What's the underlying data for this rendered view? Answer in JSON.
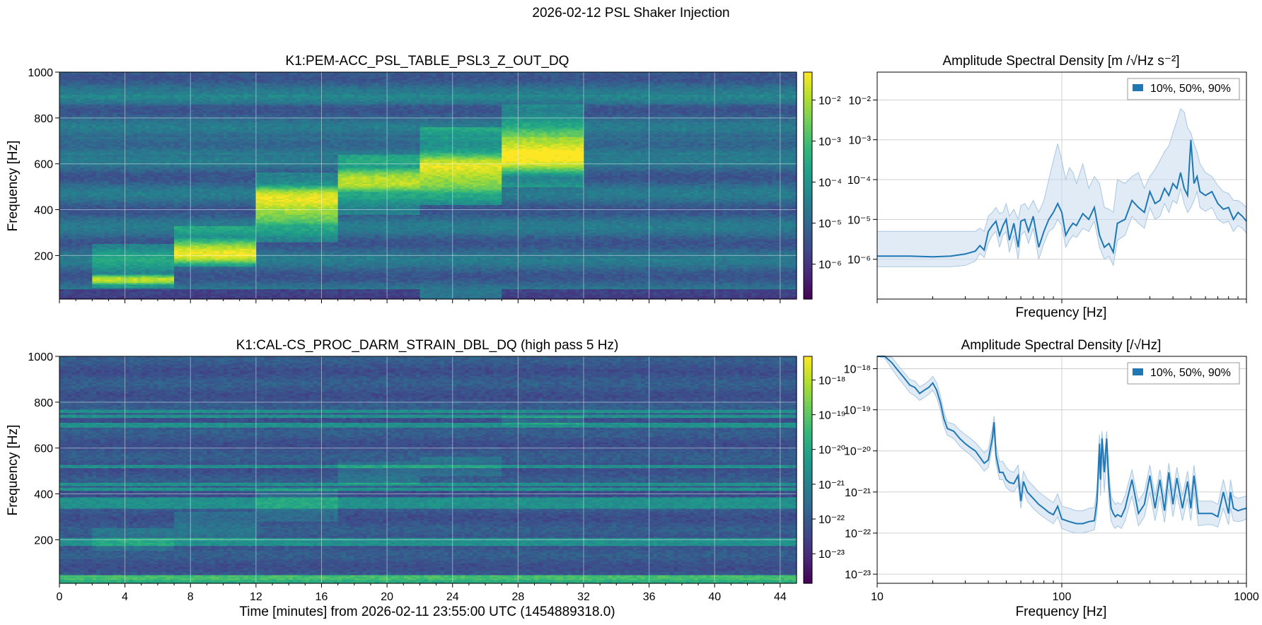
{
  "figure": {
    "suptitle": "2026-02-12 PSL Shaker Injection"
  },
  "colors": {
    "line": "#1f77b4",
    "band": "#c6dbef",
    "grid": "#d0d0d0"
  },
  "chart_data": [
    {
      "type": "heatmap",
      "title": "K1:PEM-ACC_PSL_TABLE_PSL3_Z_OUT_DQ",
      "ylabel": "Frequency [Hz]",
      "xlabel": "",
      "xlim": [
        0,
        45
      ],
      "ylim": [
        10,
        1000
      ],
      "xticks": [
        0,
        4,
        8,
        12,
        16,
        20,
        24,
        28,
        32,
        36,
        40,
        44
      ],
      "xtick_labels": [],
      "yticks": [
        200,
        400,
        600,
        800,
        1000
      ],
      "ytick_labels": [
        "200",
        "400",
        "600",
        "800",
        "1000"
      ],
      "grid": true,
      "colormap": "viridis",
      "colorbar": {
        "scale": "log",
        "ticks": [
          0.01,
          0.001,
          0.0001,
          1e-05,
          1e-06
        ],
        "tick_labels": [
          "10^-2",
          "10^-3",
          "10^-4",
          "10^-5",
          "10^-6"
        ]
      },
      "injections": [
        {
          "t_start": 2,
          "t_end": 7,
          "f_center": 95,
          "f_width": 25,
          "band_lo": 60,
          "band_hi": 250
        },
        {
          "t_start": 7,
          "t_end": 12,
          "f_center": 220,
          "f_width": 60,
          "band_lo": 150,
          "band_hi": 330
        },
        {
          "t_start": 12,
          "t_end": 17,
          "f_center": 420,
          "f_width": 90,
          "band_lo": 260,
          "band_hi": 560
        },
        {
          "t_start": 17,
          "t_end": 22,
          "f_center": 530,
          "f_width": 55,
          "band_lo": 380,
          "band_hi": 640
        },
        {
          "t_start": 22,
          "t_end": 27,
          "f_center": 560,
          "f_width": 90,
          "band_lo": 420,
          "band_hi": 760
        },
        {
          "t_start": 27,
          "t_end": 32,
          "f_center": 650,
          "f_width": 110,
          "band_lo": 500,
          "band_hi": 860
        }
      ]
    },
    {
      "type": "line",
      "title": "Amplitude Spectral Density [m /√Hz s⁻²]",
      "xlabel": "Frequency [Hz]",
      "ylabel": "",
      "xscale": "log",
      "yscale": "log",
      "xlim": [
        10,
        1000
      ],
      "ylim": [
        1e-07,
        0.05
      ],
      "xticks": [
        10,
        100,
        1000
      ],
      "xtick_labels": [],
      "yticks": [
        0.01,
        0.001,
        0.0001,
        1e-05,
        1e-06
      ],
      "ytick_labels": [
        "10^-2",
        "10^-3",
        "10^-4",
        "10^-5",
        "10^-6"
      ],
      "grid": true,
      "legend": {
        "label": "10%, 50%, 90%",
        "position": "top-right"
      },
      "series": [
        {
          "x": [
            10,
            15,
            20,
            25,
            30,
            34,
            36,
            38,
            40,
            42,
            44,
            46,
            48,
            50,
            52,
            55,
            58,
            60,
            63,
            66,
            70,
            75,
            80,
            85,
            90,
            95,
            100,
            105,
            110,
            115,
            120,
            130,
            140,
            150,
            160,
            170,
            180,
            190,
            200,
            220,
            240,
            260,
            280,
            300,
            320,
            340,
            360,
            380,
            400,
            420,
            440,
            460,
            480,
            500,
            520,
            540,
            560,
            600,
            650,
            700,
            750,
            800,
            850,
            900,
            950,
            1000
          ],
          "median": [
            1.2e-06,
            1.2e-06,
            1.15e-06,
            1.2e-06,
            1.35e-06,
            1.6e-06,
            2.2e-06,
            1.7e-06,
            5e-06,
            7e-06,
            9e-06,
            4e-06,
            7e-06,
            1e-05,
            3e-06,
            8e-06,
            2e-06,
            9e-06,
            1e-05,
            5e-06,
            1.2e-05,
            2e-06,
            5e-06,
            1e-05,
            1.5e-05,
            2.5e-05,
            1.5e-05,
            4e-06,
            6e-06,
            8e-06,
            7e-06,
            1.4e-05,
            1e-05,
            2e-05,
            4e-06,
            2e-06,
            2.5e-06,
            1.5e-06,
            8e-06,
            1e-05,
            3e-05,
            2e-05,
            1.5e-05,
            5e-05,
            2.5e-05,
            3e-05,
            6e-05,
            4e-05,
            8e-05,
            6e-05,
            0.00015,
            6e-05,
            4e-05,
            0.001,
            8e-05,
            0.00012,
            5e-05,
            4e-05,
            5e-05,
            2.5e-05,
            1.8e-05,
            2e-05,
            1e-05,
            1.5e-05,
            1.2e-05,
            9e-06
          ],
          "p10": [
            6.5e-07,
            6.5e-07,
            6.5e-07,
            6.5e-07,
            7e-07,
            9e-07,
            1.4e-06,
            1.1e-06,
            2.5e-06,
            4e-06,
            5e-06,
            2e-06,
            4e-06,
            5e-06,
            1.5e-06,
            4e-06,
            1e-06,
            4e-06,
            5e-06,
            2.5e-06,
            6e-06,
            1e-06,
            2.5e-06,
            5e-06,
            6e-06,
            1e-05,
            7e-06,
            2e-06,
            3e-06,
            4e-06,
            3.5e-06,
            6e-06,
            5e-06,
            9e-06,
            2e-06,
            1e-06,
            1.2e-06,
            7e-07,
            3e-06,
            4e-06,
            1.2e-05,
            8e-06,
            6e-06,
            2e-05,
            1e-05,
            1.2e-05,
            2.5e-05,
            1.5e-05,
            3e-05,
            2.5e-05,
            6e-05,
            2.5e-05,
            1.5e-05,
            2e-05,
            3e-05,
            5e-05,
            2e-05,
            1.6e-05,
            2e-05,
            1e-05,
            8e-06,
            9e-06,
            5e-06,
            7e-06,
            6e-06,
            4.5e-06
          ],
          "p90": [
            5e-06,
            5e-06,
            5e-06,
            5e-06,
            5e-06,
            5e-06,
            6e-06,
            5e-06,
            1.2e-05,
            1.5e-05,
            2e-05,
            1.4e-05,
            1.5e-05,
            2.5e-05,
            1.2e-05,
            1.8e-05,
            1e-05,
            2.2e-05,
            2.5e-05,
            1.8e-05,
            3e-05,
            1.5e-05,
            3e-05,
            0.0001,
            0.0003,
            0.0008,
            0.0003,
            0.0001,
            0.0002,
            0.00015,
            8e-05,
            0.00025,
            6e-05,
            0.00012,
            8e-05,
            2e-05,
            1.8e-05,
            1.5e-05,
            0.0001,
            8e-05,
            0.00012,
            0.00015,
            6e-05,
            0.00012,
            0.00018,
            0.0003,
            0.0005,
            0.0007,
            0.0015,
            0.003,
            0.006,
            0.005,
            0.002,
            0.0015,
            0.0008,
            0.0005,
            0.00025,
            0.00015,
            0.00012,
            7e-05,
            5e-05,
            4.5e-05,
            3e-05,
            3e-05,
            2.5e-05,
            2e-05
          ]
        }
      ]
    },
    {
      "type": "heatmap",
      "title": "K1:CAL-CS_PROC_DARM_STRAIN_DBL_DQ (high pass 5 Hz)",
      "ylabel": "Frequency [Hz]",
      "xlabel": "Time [minutes] from 2026-02-11 23:55:00 UTC (1454889318.0)",
      "xlim": [
        0,
        45
      ],
      "ylim": [
        10,
        1000
      ],
      "xticks": [
        0,
        4,
        8,
        12,
        16,
        20,
        24,
        28,
        32,
        36,
        40,
        44
      ],
      "xtick_labels": [
        "0",
        "4",
        "8",
        "12",
        "16",
        "20",
        "24",
        "28",
        "32",
        "36",
        "40",
        "44"
      ],
      "yticks": [
        200,
        400,
        600,
        800,
        1000
      ],
      "ytick_labels": [
        "200",
        "400",
        "600",
        "800",
        "1000"
      ],
      "grid": true,
      "colormap": "viridis",
      "colorbar": {
        "scale": "log",
        "ticks": [
          1e-18,
          1e-19,
          1e-20,
          1e-21,
          1e-22,
          1e-23
        ],
        "tick_labels": [
          "10^-18",
          "10^-19",
          "10^-20",
          "10^-21",
          "10^-22",
          "10^-23"
        ]
      },
      "lines_hz": [
        30,
        40,
        180,
        190,
        200,
        340,
        360,
        380,
        420,
        440,
        520,
        700,
        740,
        760
      ],
      "injections": [
        {
          "t_start": 2,
          "t_end": 7,
          "band_lo": 150,
          "band_hi": 250
        },
        {
          "t_start": 7,
          "t_end": 12,
          "band_lo": 200,
          "band_hi": 320
        },
        {
          "t_start": 12,
          "t_end": 17,
          "band_lo": 280,
          "band_hi": 420
        },
        {
          "t_start": 17,
          "t_end": 22,
          "band_lo": 440,
          "band_hi": 540
        },
        {
          "t_start": 22,
          "t_end": 27,
          "band_lo": 480,
          "band_hi": 560
        },
        {
          "t_start": 27,
          "t_end": 32,
          "band_lo": 700,
          "band_hi": 740
        }
      ]
    },
    {
      "type": "line",
      "title": "Amplitude Spectral Density [/√Hz]",
      "xlabel": "Frequency [Hz]",
      "ylabel": "",
      "xscale": "log",
      "yscale": "log",
      "xlim": [
        10,
        1000
      ],
      "ylim": [
        6e-24,
        2e-18
      ],
      "xticks": [
        10,
        100,
        1000
      ],
      "xtick_labels": [
        "10",
        "100",
        "1000"
      ],
      "yticks": [
        1e-18,
        1e-19,
        1e-20,
        1e-21,
        1e-22,
        1e-23
      ],
      "ytick_labels": [
        "10^-18",
        "10^-19",
        "10^-20",
        "10^-21",
        "10^-22",
        "10^-23"
      ],
      "grid": true,
      "legend": {
        "label": "10%, 50%, 90%",
        "position": "top-right"
      },
      "series": [
        {
          "x": [
            10,
            11,
            12,
            13,
            14,
            15,
            16,
            17,
            18,
            19,
            20,
            21,
            22,
            23,
            24,
            26,
            28,
            30,
            32,
            34,
            36,
            38,
            40,
            42,
            43,
            44,
            46,
            48,
            50,
            52,
            55,
            58,
            60,
            62,
            65,
            70,
            75,
            80,
            85,
            90,
            95,
            100,
            110,
            120,
            130,
            140,
            150,
            155,
            160,
            162,
            165,
            170,
            175,
            180,
            185,
            190,
            195,
            200,
            210,
            220,
            240,
            260,
            280,
            300,
            320,
            340,
            360,
            380,
            400,
            420,
            450,
            480,
            500,
            520,
            550,
            600,
            650,
            700,
            750,
            800,
            820,
            850,
            900,
            950,
            1000
          ],
          "median": [
            4e-18,
            2.5e-18,
            1.4e-18,
            9e-19,
            6e-19,
            4e-19,
            3.5e-19,
            2.5e-19,
            3e-19,
            3.5e-19,
            4.5e-19,
            3e-19,
            1.5e-19,
            6e-20,
            3.5e-20,
            3e-20,
            2e-20,
            1.5e-20,
            1.2e-20,
            1e-20,
            7e-21,
            5e-21,
            6e-21,
            2e-20,
            5e-20,
            8e-21,
            3e-21,
            3e-21,
            2e-21,
            1.7e-21,
            1.6e-21,
            2.5e-21,
            6e-22,
            1.8e-21,
            1e-21,
            7e-22,
            5e-22,
            4e-22,
            3.2e-22,
            2.8e-22,
            4.5e-22,
            2.2e-22,
            1.9e-22,
            1.7e-22,
            1.7e-22,
            1.9e-22,
            2e-22,
            6e-22,
            1.5e-20,
            2e-21,
            2e-20,
            3e-21,
            2e-20,
            1.5e-21,
            4e-22,
            3e-22,
            2.5e-22,
            2.8e-22,
            2.5e-22,
            4e-22,
            2e-21,
            3e-22,
            5e-22,
            2.5e-21,
            4e-22,
            2e-21,
            3.5e-22,
            3e-21,
            5e-22,
            2.2e-21,
            4e-22,
            1.8e-21,
            4e-22,
            2.5e-21,
            3e-22,
            3e-22,
            3e-22,
            2.5e-22,
            1e-21,
            3e-22,
            1e-21,
            4e-22,
            3.5e-22,
            3.8e-22,
            4e-22
          ],
          "p10": [
            3e-18,
            1.8e-18,
            1e-18,
            6e-19,
            4e-19,
            2.6e-19,
            2.2e-19,
            1.7e-19,
            2e-19,
            2.4e-19,
            3e-19,
            2e-19,
            1e-19,
            4e-20,
            2.4e-20,
            2e-20,
            1.3e-20,
            1e-20,
            8e-21,
            6e-21,
            4.5e-21,
            3.2e-21,
            4e-21,
            1.2e-20,
            3e-20,
            5e-21,
            2e-21,
            2e-21,
            1.3e-21,
            1.1e-21,
            1e-21,
            1.5e-21,
            4e-22,
            1.1e-21,
            6e-22,
            4e-22,
            3e-22,
            2.4e-22,
            2e-22,
            1.7e-22,
            2.5e-22,
            1.3e-22,
            1.1e-22,
            1e-22,
            1e-22,
            1.1e-22,
            1.2e-22,
            3e-22,
            5e-21,
            8e-22,
            8e-21,
            1e-21,
            8e-21,
            6e-22,
            2e-22,
            1.5e-22,
            1.3e-22,
            1.5e-22,
            1.3e-22,
            2e-22,
            8e-22,
            1.5e-22,
            2.5e-22,
            1e-21,
            2e-22,
            8e-22,
            1.8e-22,
            1.2e-21,
            2.5e-22,
            9e-22,
            2e-22,
            7e-22,
            2e-22,
            1e-21,
            1.5e-22,
            1.6e-22,
            1.6e-22,
            1.4e-22,
            4e-22,
            1.6e-22,
            4e-22,
            2e-22,
            1.9e-22,
            2e-22,
            2.2e-22
          ],
          "p90": [
            5e-18,
            3.2e-18,
            1.9e-18,
            1.2e-18,
            8e-19,
            5.5e-19,
            5e-19,
            3.6e-19,
            4.2e-19,
            5e-19,
            6.5e-19,
            4.5e-19,
            2.2e-19,
            9e-20,
            5e-20,
            4.5e-20,
            3.2e-20,
            2.5e-20,
            2e-20,
            1.6e-20,
            1.2e-20,
            9e-21,
            1.1e-20,
            3.5e-20,
            7e-20,
            1.4e-20,
            5.5e-21,
            5.5e-21,
            4e-21,
            3.3e-21,
            3e-21,
            4.5e-21,
            1.2e-21,
            3.2e-21,
            2e-21,
            1.4e-21,
            1e-21,
            8e-22,
            6.5e-22,
            5.5e-22,
            9e-22,
            4.5e-22,
            4e-22,
            3.5e-22,
            3.5e-22,
            4e-22,
            4.2e-22,
            1.2e-21,
            2.5e-20,
            4e-21,
            3e-20,
            6e-21,
            3e-20,
            3e-21,
            8e-22,
            6e-22,
            5e-22,
            5.5e-22,
            5e-22,
            8e-22,
            3.5e-21,
            6e-22,
            1e-21,
            4.5e-21,
            8e-22,
            3.5e-21,
            7e-22,
            5e-21,
            1e-21,
            4e-21,
            8e-22,
            3.2e-21,
            8e-22,
            4.5e-21,
            6e-22,
            6e-22,
            6e-22,
            5e-22,
            2e-21,
            6e-22,
            2e-21,
            8e-22,
            7e-22,
            7.5e-22,
            8e-22
          ]
        }
      ]
    }
  ]
}
